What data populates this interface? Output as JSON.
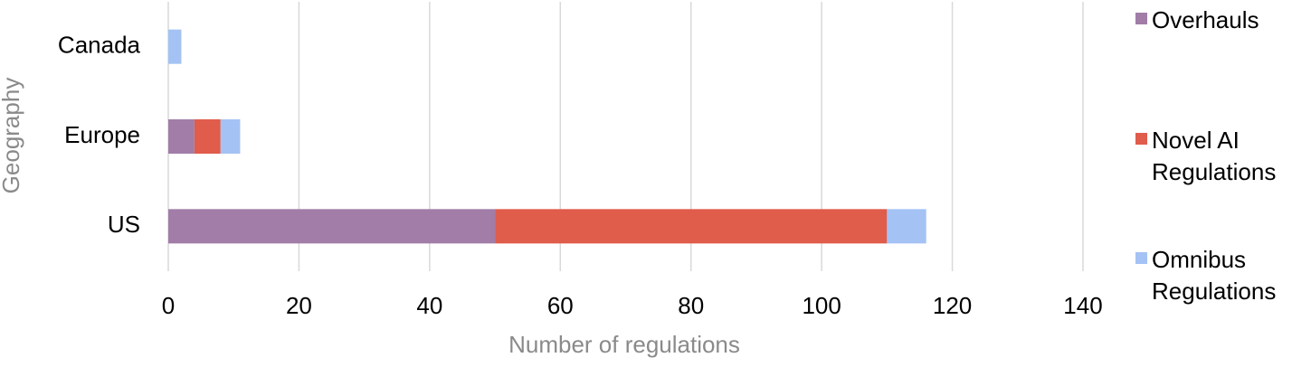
{
  "chart_data": {
    "type": "stacked-barh",
    "categories": [
      "Canada",
      "Europe",
      "US"
    ],
    "series": [
      {
        "name": "Overhauls",
        "color": "#a17da8",
        "values": [
          0,
          4,
          50
        ]
      },
      {
        "name": "Novel AI Regulations",
        "color": "#e05c4b",
        "values": [
          0,
          4,
          60
        ]
      },
      {
        "name": "Omnibus Regulations",
        "color": "#a4c2f4",
        "values": [
          2,
          3,
          6
        ]
      }
    ],
    "xlabel": "Number of regulations",
    "ylabel": "Geography",
    "xlim": [
      0,
      140
    ],
    "xticks": [
      0,
      20,
      40,
      60,
      80,
      100,
      120,
      140
    ],
    "grid": true,
    "legend": "right"
  }
}
